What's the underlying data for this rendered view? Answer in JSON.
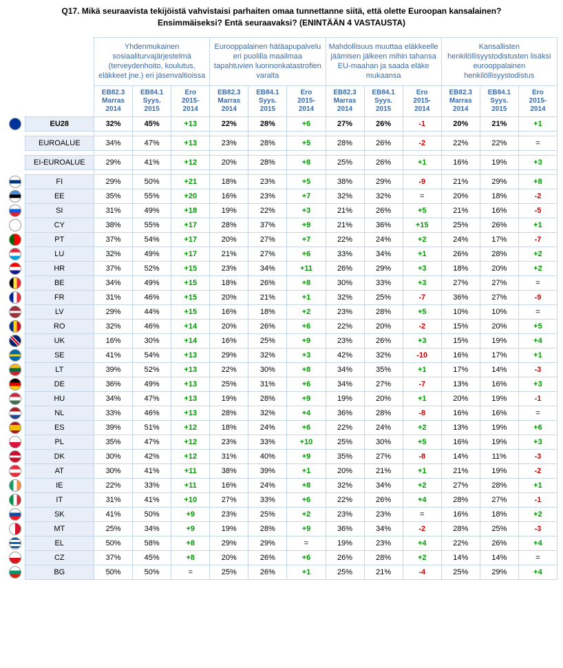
{
  "title_line1": "Q17. Mikä seuraavista tekijöistä vahvistaisi parhaiten omaa tunnettanne siitä, että olette Euroopan kansalainen?",
  "title_line2": "Ensimmäiseksi? Entä seuraavaksi? (ENINTÄÄN 4 VASTAUSTA)",
  "group_headers": [
    "Yhdenmukainen sosiaaliturvajärjestelmä (terveydenhoito, koulutus, eläkkeet jne.) eri jäsenvaltioissa",
    "Eurooppalainen hätäapupalvelu eri puolilla maailmaa tapahtuvien luonnonkatastrofien varalta",
    "Mahdollisuus muuttaa eläkkeelle jäämisen jälkeen mihin tahansa EU-maahan ja saada eläke mukaansa",
    "Kansallisten henkilöllisyystodistusten lisäksi eurooppalainen henkilöllisyystodistus"
  ],
  "sub_headers": [
    {
      "l1": "EB82.3",
      "l2": "Marras",
      "l3": "2014"
    },
    {
      "l1": "EB84.1",
      "l2": "Syys.",
      "l3": "2015"
    },
    {
      "l1": "Ero",
      "l2": "2015-",
      "l3": "2014"
    }
  ],
  "top_rows": [
    {
      "code": "EU28",
      "flag": "eu",
      "v": [
        "32%",
        "45%",
        "+13",
        "22%",
        "28%",
        "+6",
        "27%",
        "26%",
        "-1",
        "20%",
        "21%",
        "+1"
      ],
      "bold": true
    },
    {
      "code": "EUROALUE",
      "flag": "",
      "v": [
        "34%",
        "47%",
        "+13",
        "23%",
        "28%",
        "+5",
        "28%",
        "26%",
        "-2",
        "22%",
        "22%",
        "="
      ]
    },
    {
      "code": "EI-EUROALUE",
      "flag": "",
      "v": [
        "29%",
        "41%",
        "+12",
        "20%",
        "28%",
        "+8",
        "25%",
        "26%",
        "+1",
        "16%",
        "19%",
        "+3"
      ]
    }
  ],
  "rows": [
    {
      "code": "FI",
      "flag": "fi",
      "v": [
        "29%",
        "50%",
        "+21",
        "18%",
        "23%",
        "+5",
        "38%",
        "29%",
        "-9",
        "21%",
        "29%",
        "+8"
      ]
    },
    {
      "code": "EE",
      "flag": "ee",
      "v": [
        "35%",
        "55%",
        "+20",
        "16%",
        "23%",
        "+7",
        "32%",
        "32%",
        "=",
        "20%",
        "18%",
        "-2"
      ]
    },
    {
      "code": "SI",
      "flag": "si",
      "v": [
        "31%",
        "49%",
        "+18",
        "19%",
        "22%",
        "+3",
        "21%",
        "26%",
        "+5",
        "21%",
        "16%",
        "-5"
      ]
    },
    {
      "code": "CY",
      "flag": "cy",
      "v": [
        "38%",
        "55%",
        "+17",
        "28%",
        "37%",
        "+9",
        "21%",
        "36%",
        "+15",
        "25%",
        "26%",
        "+1"
      ]
    },
    {
      "code": "PT",
      "flag": "pt",
      "v": [
        "37%",
        "54%",
        "+17",
        "20%",
        "27%",
        "+7",
        "22%",
        "24%",
        "+2",
        "24%",
        "17%",
        "-7"
      ]
    },
    {
      "code": "LU",
      "flag": "lu",
      "v": [
        "32%",
        "49%",
        "+17",
        "21%",
        "27%",
        "+6",
        "33%",
        "34%",
        "+1",
        "26%",
        "28%",
        "+2"
      ]
    },
    {
      "code": "HR",
      "flag": "hr",
      "v": [
        "37%",
        "52%",
        "+15",
        "23%",
        "34%",
        "+11",
        "26%",
        "29%",
        "+3",
        "18%",
        "20%",
        "+2"
      ]
    },
    {
      "code": "BE",
      "flag": "be",
      "v": [
        "34%",
        "49%",
        "+15",
        "18%",
        "26%",
        "+8",
        "30%",
        "33%",
        "+3",
        "27%",
        "27%",
        "="
      ]
    },
    {
      "code": "FR",
      "flag": "fr",
      "v": [
        "31%",
        "46%",
        "+15",
        "20%",
        "21%",
        "+1",
        "32%",
        "25%",
        "-7",
        "36%",
        "27%",
        "-9"
      ]
    },
    {
      "code": "LV",
      "flag": "lv",
      "v": [
        "29%",
        "44%",
        "+15",
        "16%",
        "18%",
        "+2",
        "23%",
        "28%",
        "+5",
        "10%",
        "10%",
        "="
      ]
    },
    {
      "code": "RO",
      "flag": "ro",
      "v": [
        "32%",
        "46%",
        "+14",
        "20%",
        "26%",
        "+6",
        "22%",
        "20%",
        "-2",
        "15%",
        "20%",
        "+5"
      ]
    },
    {
      "code": "UK",
      "flag": "uk",
      "v": [
        "16%",
        "30%",
        "+14",
        "16%",
        "25%",
        "+9",
        "23%",
        "26%",
        "+3",
        "15%",
        "19%",
        "+4"
      ]
    },
    {
      "code": "SE",
      "flag": "se",
      "v": [
        "41%",
        "54%",
        "+13",
        "29%",
        "32%",
        "+3",
        "42%",
        "32%",
        "-10",
        "16%",
        "17%",
        "+1"
      ]
    },
    {
      "code": "LT",
      "flag": "lt",
      "v": [
        "39%",
        "52%",
        "+13",
        "22%",
        "30%",
        "+8",
        "34%",
        "35%",
        "+1",
        "17%",
        "14%",
        "-3"
      ]
    },
    {
      "code": "DE",
      "flag": "de",
      "v": [
        "36%",
        "49%",
        "+13",
        "25%",
        "31%",
        "+6",
        "34%",
        "27%",
        "-7",
        "13%",
        "16%",
        "+3"
      ]
    },
    {
      "code": "HU",
      "flag": "hu",
      "v": [
        "34%",
        "47%",
        "+13",
        "19%",
        "28%",
        "+9",
        "19%",
        "20%",
        "+1",
        "20%",
        "19%",
        "-1"
      ]
    },
    {
      "code": "NL",
      "flag": "nl",
      "v": [
        "33%",
        "46%",
        "+13",
        "28%",
        "32%",
        "+4",
        "36%",
        "28%",
        "-8",
        "16%",
        "16%",
        "="
      ]
    },
    {
      "code": "ES",
      "flag": "es",
      "v": [
        "39%",
        "51%",
        "+12",
        "18%",
        "24%",
        "+6",
        "22%",
        "24%",
        "+2",
        "13%",
        "19%",
        "+6"
      ]
    },
    {
      "code": "PL",
      "flag": "pl",
      "v": [
        "35%",
        "47%",
        "+12",
        "23%",
        "33%",
        "+10",
        "25%",
        "30%",
        "+5",
        "16%",
        "19%",
        "+3"
      ]
    },
    {
      "code": "DK",
      "flag": "dk",
      "v": [
        "30%",
        "42%",
        "+12",
        "31%",
        "40%",
        "+9",
        "35%",
        "27%",
        "-8",
        "14%",
        "11%",
        "-3"
      ]
    },
    {
      "code": "AT",
      "flag": "at",
      "v": [
        "30%",
        "41%",
        "+11",
        "38%",
        "39%",
        "+1",
        "20%",
        "21%",
        "+1",
        "21%",
        "19%",
        "-2"
      ]
    },
    {
      "code": "IE",
      "flag": "ie",
      "v": [
        "22%",
        "33%",
        "+11",
        "16%",
        "24%",
        "+8",
        "32%",
        "34%",
        "+2",
        "27%",
        "28%",
        "+1"
      ]
    },
    {
      "code": "IT",
      "flag": "it",
      "v": [
        "31%",
        "41%",
        "+10",
        "27%",
        "33%",
        "+6",
        "22%",
        "26%",
        "+4",
        "28%",
        "27%",
        "-1"
      ]
    },
    {
      "code": "SK",
      "flag": "sk",
      "v": [
        "41%",
        "50%",
        "+9",
        "23%",
        "25%",
        "+2",
        "23%",
        "23%",
        "=",
        "16%",
        "18%",
        "+2"
      ]
    },
    {
      "code": "MT",
      "flag": "mt",
      "v": [
        "25%",
        "34%",
        "+9",
        "19%",
        "28%",
        "+9",
        "36%",
        "34%",
        "-2",
        "28%",
        "25%",
        "-3"
      ]
    },
    {
      "code": "EL",
      "flag": "el",
      "v": [
        "50%",
        "58%",
        "+8",
        "29%",
        "29%",
        "=",
        "19%",
        "23%",
        "+4",
        "22%",
        "26%",
        "+4"
      ]
    },
    {
      "code": "CZ",
      "flag": "cz",
      "v": [
        "37%",
        "45%",
        "+8",
        "20%",
        "26%",
        "+6",
        "26%",
        "28%",
        "+2",
        "14%",
        "14%",
        "="
      ]
    },
    {
      "code": "BG",
      "flag": "bg",
      "v": [
        "50%",
        "50%",
        "=",
        "25%",
        "26%",
        "+1",
        "25%",
        "21%",
        "-4",
        "25%",
        "29%",
        "+4"
      ]
    }
  ],
  "flag_styles": {
    "eu": "background:#003399;",
    "fi": "background:linear-gradient(#fff 35%,#003580 35% 65%,#fff 65%);",
    "ee": "background:linear-gradient(#4891d9 33%,#000 33% 66%,#fff 66%);",
    "si": "background:linear-gradient(#fff 33%,#005ce5 33% 66%,#ed1c24 66%);",
    "cy": "background:#fff;",
    "pt": "background:linear-gradient(90deg,#006600 40%,#ff0000 40%);",
    "lu": "background:linear-gradient(#ed2939 33%,#fff 33% 66%,#00a1de 66%);",
    "hr": "background:linear-gradient(#ff0000 33%,#fff 33% 66%,#171796 66%);",
    "be": "background:linear-gradient(90deg,#000 33%,#fae042 33% 66%,#ed2939 66%);",
    "fr": "background:linear-gradient(90deg,#002395 33%,#fff 33% 66%,#ed2939 66%);",
    "lv": "background:linear-gradient(#9e3039 40%,#fff 40% 60%,#9e3039 60%);",
    "ro": "background:linear-gradient(90deg,#002b7f 33%,#fcd116 33% 66%,#ce1126 66%);",
    "uk": "background:linear-gradient(45deg,#012169 40%,#fff 40% 45%,#c8102e 45% 55%,#fff 55% 60%,#012169 60%);",
    "se": "background:linear-gradient(#006aa7 40%,#fecc00 40% 60%,#006aa7 60%);",
    "lt": "background:linear-gradient(#fdb913 33%,#006a44 33% 66%,#c1272d 66%);",
    "de": "background:linear-gradient(#000 33%,#dd0000 33% 66%,#ffce00 66%);",
    "hu": "background:linear-gradient(#cd2a3e 33%,#fff 33% 66%,#436f4d 66%);",
    "nl": "background:linear-gradient(#ae1c28 33%,#fff 33% 66%,#21468b 66%);",
    "es": "background:linear-gradient(#aa151b 25%,#f1bf00 25% 75%,#aa151b 75%);",
    "pl": "background:linear-gradient(#fff 50%,#dc143c 50%);",
    "dk": "background:linear-gradient(#c8102e 40%,#fff 40% 60%,#c8102e 60%);",
    "at": "background:linear-gradient(#ed2939 33%,#fff 33% 66%,#ed2939 66%);",
    "ie": "background:linear-gradient(90deg,#169b62 33%,#fff 33% 66%,#ff883e 66%);",
    "it": "background:linear-gradient(90deg,#009246 33%,#fff 33% 66%,#ce2b37 66%);",
    "sk": "background:linear-gradient(#fff 33%,#0b4ea2 33% 66%,#ee1c25 66%);",
    "mt": "background:linear-gradient(90deg,#fff 50%,#cf142b 50%);",
    "el": "background:repeating-linear-gradient(#0d5eaf 0 3px,#fff 3px 6px);",
    "cz": "background:linear-gradient(#fff 50%,#d7141a 50%);",
    "bg": "background:linear-gradient(#fff 33%,#00966e 33% 66%,#d62612 66%);"
  }
}
